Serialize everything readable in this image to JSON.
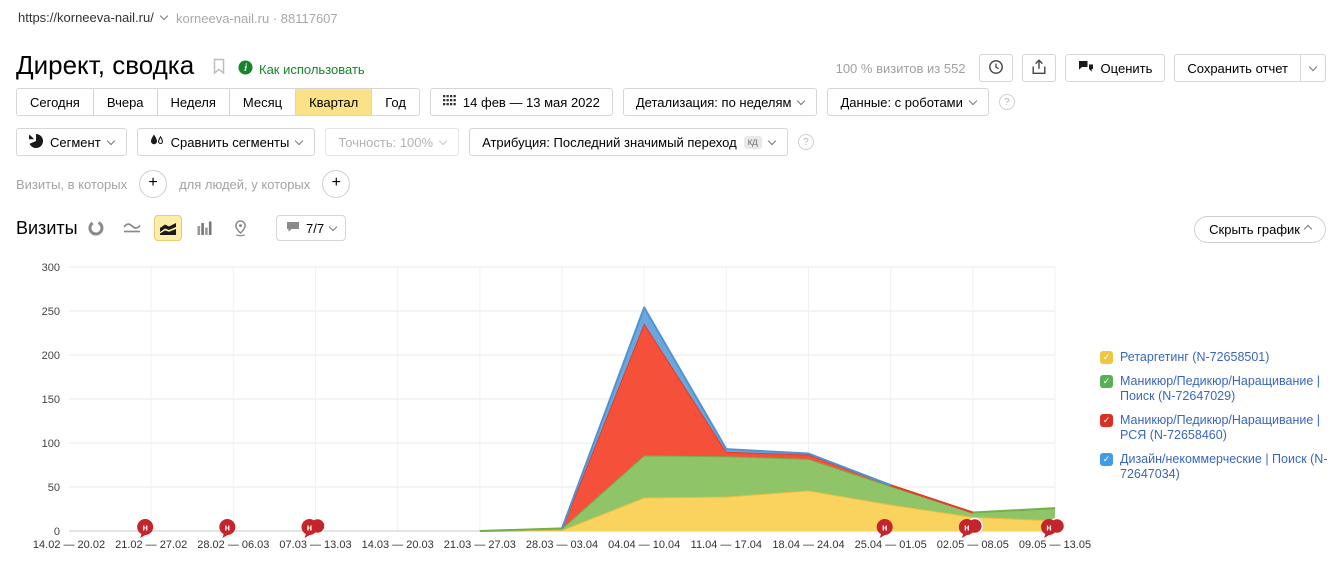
{
  "topbar": {
    "url": "https://korneeva-nail.ru/",
    "counter_label": "korneeva-nail.ru · 88117607"
  },
  "header": {
    "title": "Директ, сводка",
    "how_to_use_label": "Как использовать",
    "visits_summary": "100 % визитов из 552",
    "rate_button_label": "Оценить",
    "save_report_label": "Сохранить отчет"
  },
  "period_bar": {
    "tabs": [
      "Сегодня",
      "Вчера",
      "Неделя",
      "Месяц",
      "Квартал",
      "Год"
    ],
    "active_tab": "Квартал",
    "date_range_label": "14 фев — 13 мая 2022",
    "detalization_label": "Детализация: по неделям",
    "data_label": "Данные: с роботами"
  },
  "segment_bar": {
    "segment_label": "Сегмент",
    "compare_label": "Сравнить сегменты",
    "accuracy_label": "Точность: 100%",
    "attribution_label": "Атрибуция: Последний значимый переход",
    "attribution_badge": "кд"
  },
  "filters": {
    "visits_condition_label": "Визиты, в которых",
    "people_condition_label": "для людей, у которых"
  },
  "chart_header": {
    "title": "Визиты",
    "comments_count": "7/7",
    "hide_chart_label": "Скрыть график"
  },
  "misc": {
    "help_symbol": "?"
  },
  "chart_data": {
    "type": "area",
    "stacked": true,
    "title": "Визиты",
    "ylim": [
      0,
      300
    ],
    "yticks": [
      0,
      50,
      100,
      150,
      200,
      250,
      300
    ],
    "grid": true,
    "legend_position": "right",
    "categories": [
      "14.02 — 20.02",
      "21.02 — 27.02",
      "28.02 — 06.03",
      "07.03 — 13.03",
      "14.03 — 20.03",
      "21.03 — 27.03",
      "28.03 — 03.04",
      "04.04 — 10.04",
      "11.04 — 17.04",
      "18.04 — 24.04",
      "25.04 — 01.05",
      "02.05 — 08.05",
      "09.05 — 13.05"
    ],
    "series": [
      {
        "name": "Ретаргетинг (N-72658501)",
        "color": "#fad35f",
        "line_color": "#edbf3e",
        "checkbox_color": "#eec73f",
        "values": [
          0,
          0,
          0,
          0,
          0,
          0,
          1,
          38,
          39,
          46,
          30,
          16,
          12
        ]
      },
      {
        "name": "Маникюр/Педикюр/Наращивание | Поиск (N-72647029)",
        "color": "#90c468",
        "line_color": "#74b04a",
        "checkbox_color": "#55b154",
        "values": [
          0,
          0,
          0,
          0,
          0,
          0,
          2,
          48,
          46,
          36,
          21,
          5,
          14
        ]
      },
      {
        "name": "Маникюр/Педикюр/Наращивание | РСЯ (N-72658460)",
        "color": "#f4503a",
        "line_color": "#e23d28",
        "checkbox_color": "#d83228",
        "values": [
          0,
          0,
          0,
          0,
          0,
          0,
          0,
          150,
          5,
          5,
          1,
          0,
          0
        ]
      },
      {
        "name": "Дизайн/некоммерческие | Поиск (N-72647034)",
        "color": "#6ba7dd",
        "line_color": "#4f93d4",
        "checkbox_color": "#409be8",
        "values": [
          0,
          0,
          0,
          0,
          0,
          0,
          0,
          18,
          3,
          1,
          0,
          0,
          0
        ]
      }
    ],
    "marker_color": "#c4242b",
    "markers": [
      {
        "category_index": 1,
        "label": "н",
        "double": false
      },
      {
        "category_index": 2,
        "label": "н",
        "double": false
      },
      {
        "category_index": 3,
        "label": "н",
        "double": true
      },
      {
        "category_index": 10,
        "label": "н",
        "double": false
      },
      {
        "category_index": 11,
        "label": "н",
        "double": true
      },
      {
        "category_index": 12,
        "label": "н",
        "double": true
      }
    ]
  }
}
